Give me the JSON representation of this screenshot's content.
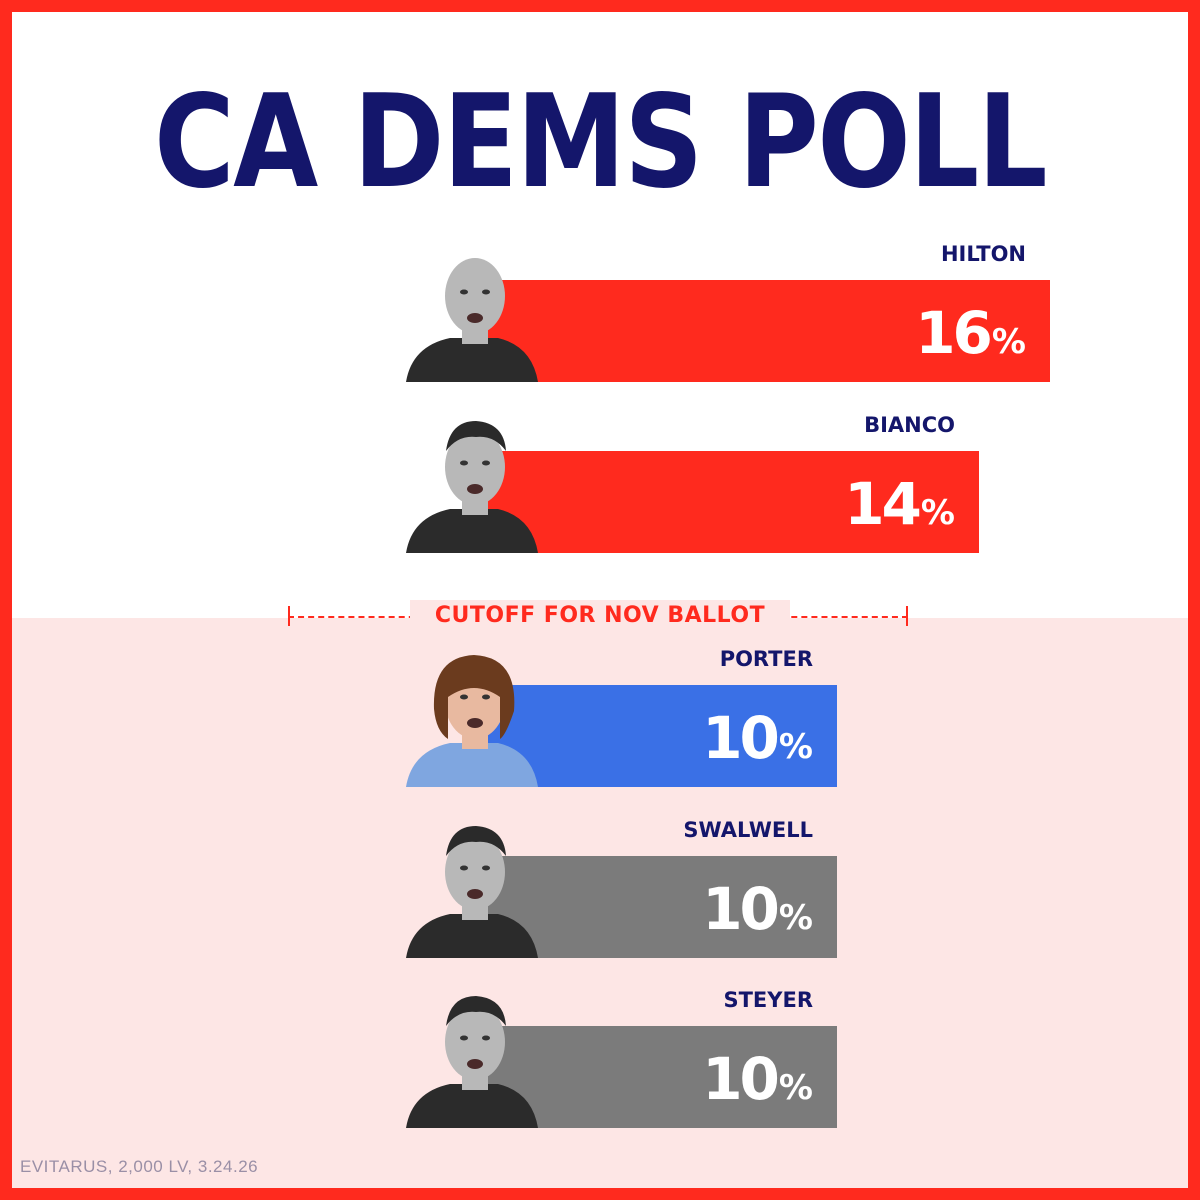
{
  "title": "CA DEMS POLL",
  "cutoff_label": "CUTOFF FOR NOV BALLOT",
  "source_note": "EVITARUS, 2,000 LV, 3.24.26",
  "colors": {
    "frame": "#ff2a1e",
    "title": "#14166b",
    "republican_bar": "#ff2a1e",
    "porter_bar": "#3a70e6",
    "other_bar": "#7b7b7b",
    "lower_background": "#fde6e5"
  },
  "chart_data": {
    "type": "bar",
    "orientation": "horizontal",
    "title": "CA DEMS POLL",
    "unit": "%",
    "categories": [
      "HILTON",
      "BIANCO",
      "PORTER",
      "SWALWELL",
      "STEYER"
    ],
    "values": [
      16,
      14,
      10,
      10,
      10
    ],
    "value_labels": [
      "16",
      "14",
      "10",
      "10",
      "10"
    ],
    "value_suffix": "%",
    "bar_colors": [
      "#ff2a1e",
      "#ff2a1e",
      "#3a70e6",
      "#7b7b7b",
      "#7b7b7b"
    ],
    "photos": [
      "portrait-hilton",
      "portrait-bianco",
      "portrait-porter",
      "portrait-swalwell",
      "portrait-steyer"
    ],
    "cutoff_after_index": 1,
    "cutoff_label": "CUTOFF FOR NOV BALLOT",
    "grid": false,
    "legend": "none"
  }
}
